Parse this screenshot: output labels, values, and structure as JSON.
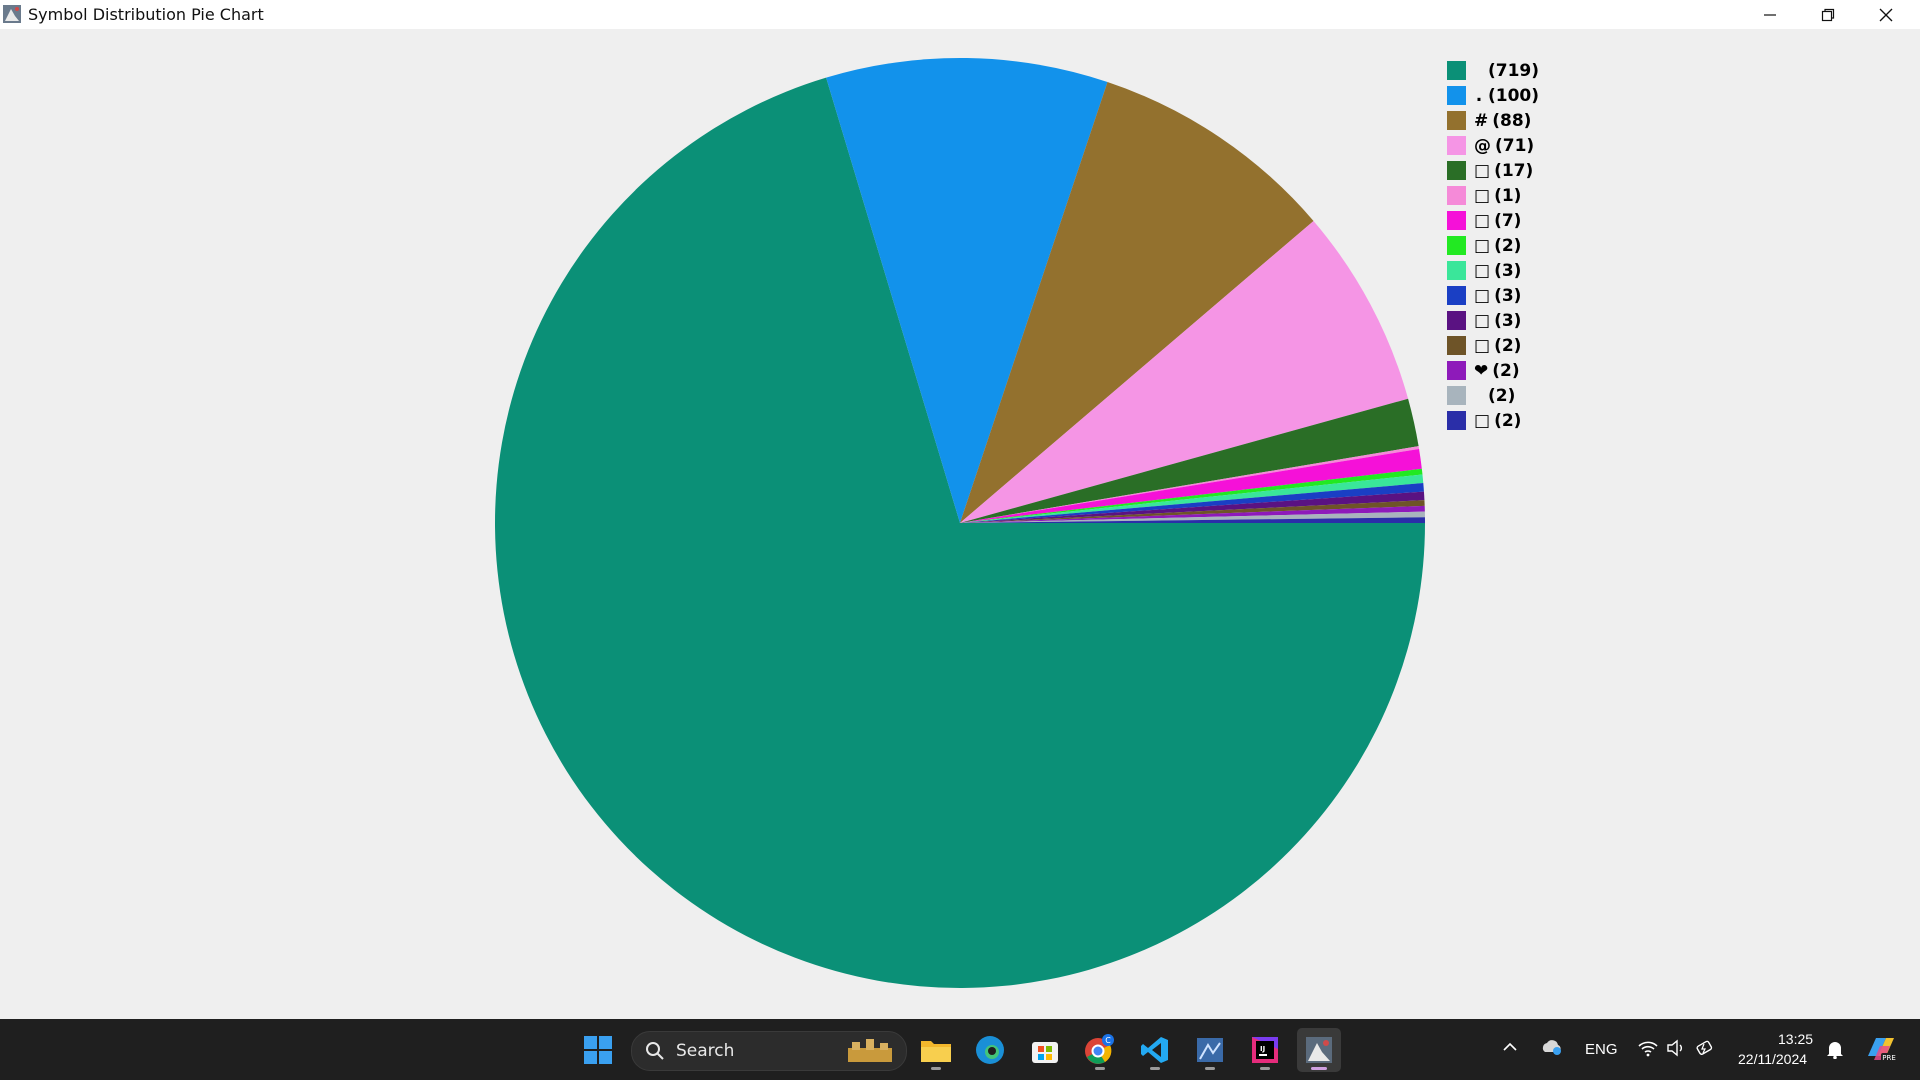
{
  "window": {
    "title": "Symbol Distribution Pie Chart"
  },
  "colors": {
    "background": "#efefef",
    "taskbar": "#1f1f1f"
  },
  "chart_data": {
    "type": "pie",
    "title": "",
    "legend_position": "top-right",
    "slices": [
      {
        "label": " ",
        "value": 719,
        "display": "(719)",
        "color": "#0b9077"
      },
      {
        "label": ".",
        "value": 100,
        "display": "(100)",
        "color": "#1292eb"
      },
      {
        "label": "#",
        "value": 88,
        "display": "(88)",
        "color": "#93712e"
      },
      {
        "label": "@",
        "value": 71,
        "display": "(71)",
        "color": "#f595e5"
      },
      {
        "label": "□",
        "value": 17,
        "display": "(17)",
        "color": "#2a6e26"
      },
      {
        "label": "□",
        "value": 1,
        "display": "(1)",
        "color": "#f58ad8"
      },
      {
        "label": "□",
        "value": 7,
        "display": "(7)",
        "color": "#f511d8"
      },
      {
        "label": "□",
        "value": 2,
        "display": "(2)",
        "color": "#22e922"
      },
      {
        "label": "□",
        "value": 3,
        "display": "(3)",
        "color": "#3ae69a"
      },
      {
        "label": "□",
        "value": 3,
        "display": "(3)",
        "color": "#1a3fc4"
      },
      {
        "label": "□",
        "value": 3,
        "display": "(3)",
        "color": "#5a1282"
      },
      {
        "label": "□",
        "value": 2,
        "display": "(2)",
        "color": "#6e5428"
      },
      {
        "label": "❤",
        "value": 2,
        "display": "(2)",
        "color": "#8e1aba"
      },
      {
        "label": " ",
        "value": 2,
        "display": "(2)",
        "color": "#a8b4bd"
      },
      {
        "label": "□",
        "value": 2,
        "display": "(2)",
        "color": "#2a2ea8"
      }
    ]
  },
  "taskbar": {
    "search_label": "Search",
    "language": "ENG",
    "time": "13:25",
    "date": "22/11/2024",
    "apps": [
      {
        "name": "start-button",
        "icon": "windows-logo-icon"
      },
      {
        "name": "file-explorer",
        "icon": "folder-icon"
      },
      {
        "name": "edge",
        "icon": "edge-icon"
      },
      {
        "name": "microsoft-store",
        "icon": "store-icon"
      },
      {
        "name": "chrome",
        "icon": "chrome-icon"
      },
      {
        "name": "vscode",
        "icon": "vscode-icon"
      },
      {
        "name": "app-generic",
        "icon": "app-icon"
      },
      {
        "name": "intellij",
        "icon": "intellij-icon"
      },
      {
        "name": "java-app",
        "icon": "java-icon"
      }
    ]
  }
}
